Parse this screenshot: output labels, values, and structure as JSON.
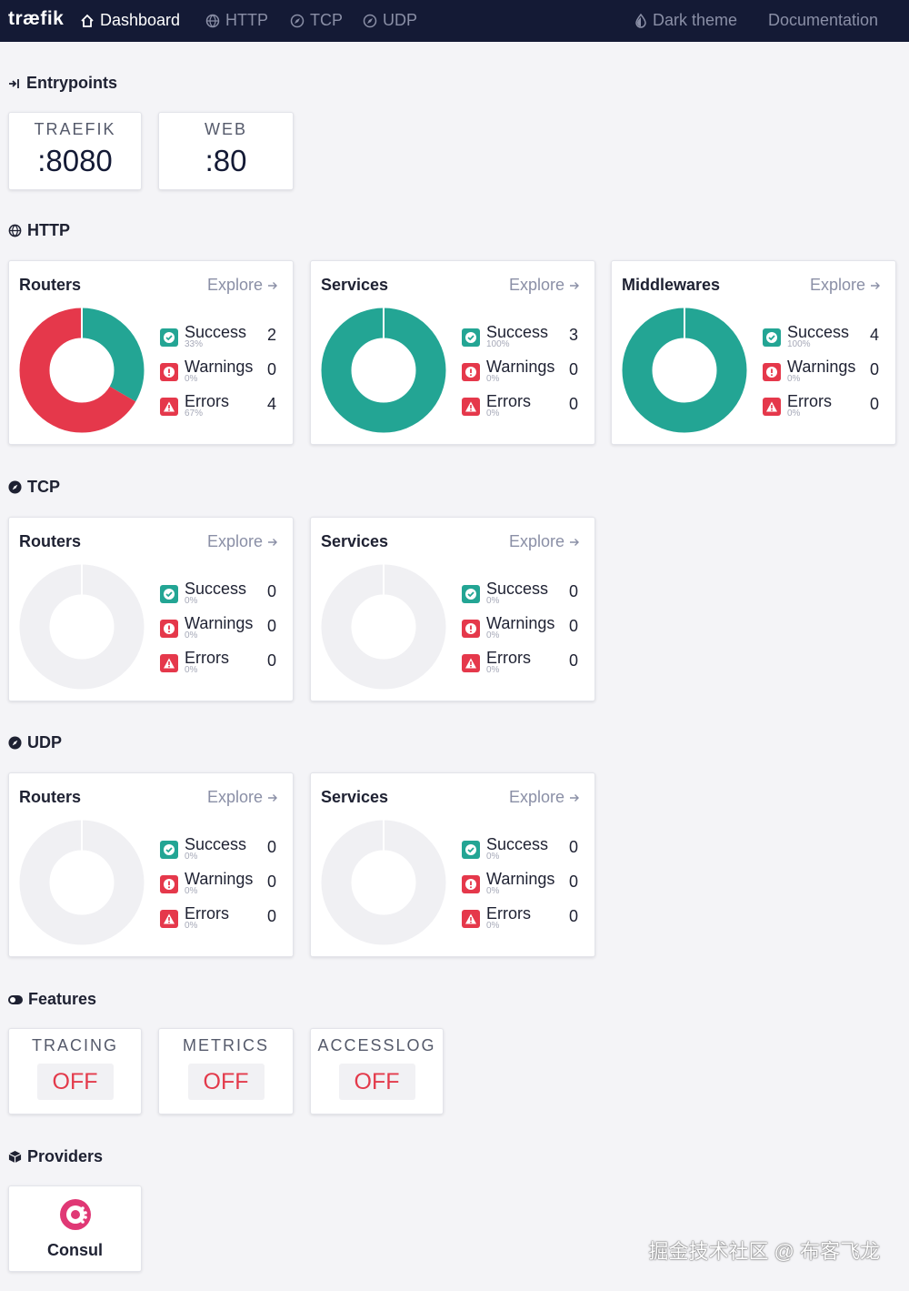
{
  "nav": {
    "logo": "træfik",
    "dashboard": "Dashboard",
    "http": "HTTP",
    "tcp": "TCP",
    "udp": "UDP",
    "dark_theme": "Dark theme",
    "documentation": "Documentation"
  },
  "colors": {
    "success": "#23a594",
    "warning": "#e5384b",
    "error": "#e5384b",
    "empty": "#f0f0f3"
  },
  "entrypoints": {
    "title": "Entrypoints",
    "items": [
      {
        "name": "TRAEFIK",
        "port": ":8080"
      },
      {
        "name": "WEB",
        "port": ":80"
      }
    ]
  },
  "http": {
    "title": "HTTP",
    "cards": [
      {
        "title": "Routers",
        "explore": "Explore",
        "success": 2,
        "warnings": 0,
        "errors": 4,
        "success_pct": "33%",
        "warnings_pct": "0%",
        "errors_pct": "67%"
      },
      {
        "title": "Services",
        "explore": "Explore",
        "success": 3,
        "warnings": 0,
        "errors": 0,
        "success_pct": "100%",
        "warnings_pct": "0%",
        "errors_pct": "0%"
      },
      {
        "title": "Middlewares",
        "explore": "Explore",
        "success": 4,
        "warnings": 0,
        "errors": 0,
        "success_pct": "100%",
        "warnings_pct": "0%",
        "errors_pct": "0%"
      }
    ]
  },
  "tcp": {
    "title": "TCP",
    "cards": [
      {
        "title": "Routers",
        "explore": "Explore",
        "success": 0,
        "warnings": 0,
        "errors": 0,
        "success_pct": "0%",
        "warnings_pct": "0%",
        "errors_pct": "0%"
      },
      {
        "title": "Services",
        "explore": "Explore",
        "success": 0,
        "warnings": 0,
        "errors": 0,
        "success_pct": "0%",
        "warnings_pct": "0%",
        "errors_pct": "0%"
      }
    ]
  },
  "udp": {
    "title": "UDP",
    "cards": [
      {
        "title": "Routers",
        "explore": "Explore",
        "success": 0,
        "warnings": 0,
        "errors": 0,
        "success_pct": "0%",
        "warnings_pct": "0%",
        "errors_pct": "0%"
      },
      {
        "title": "Services",
        "explore": "Explore",
        "success": 0,
        "warnings": 0,
        "errors": 0,
        "success_pct": "0%",
        "warnings_pct": "0%",
        "errors_pct": "0%"
      }
    ]
  },
  "labels": {
    "success": "Success",
    "warnings": "Warnings",
    "errors": "Errors"
  },
  "features": {
    "title": "Features",
    "items": [
      {
        "name": "TRACING",
        "value": "OFF"
      },
      {
        "name": "METRICS",
        "value": "OFF"
      },
      {
        "name": "ACCESSLOG",
        "value": "OFF"
      }
    ]
  },
  "providers": {
    "title": "Providers",
    "items": [
      {
        "name": "Consul"
      }
    ]
  },
  "watermark": "掘金技术社区 @ 布客飞龙"
}
